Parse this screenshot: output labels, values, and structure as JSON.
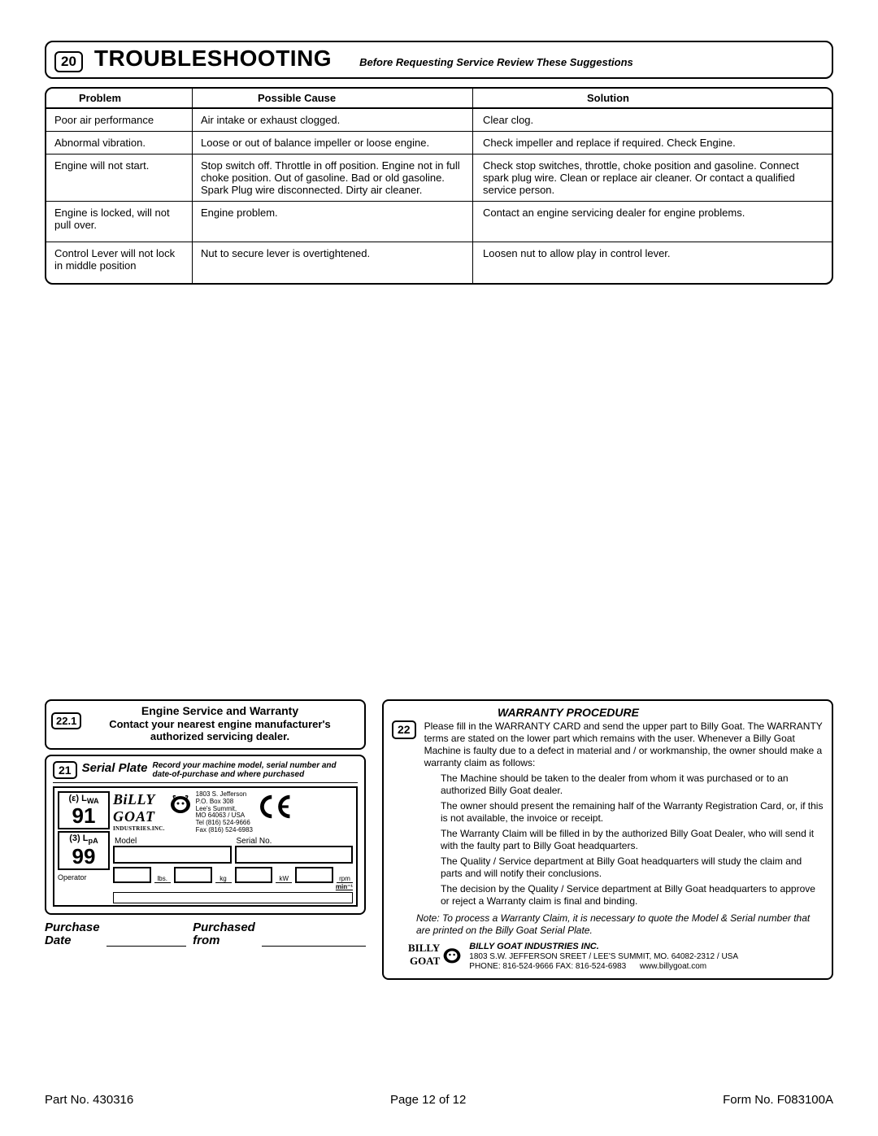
{
  "section20": {
    "num": "20",
    "title": "TROUBLESHOOTING",
    "subtitle": "Before Requesting Service Review These Suggestions"
  },
  "ts_table": {
    "columns": [
      "Problem",
      "Possible Cause",
      "Solution"
    ],
    "rows": [
      [
        "Poor air performance",
        "Air intake or exhaust clogged.",
        "Clear clog."
      ],
      [
        "Abnormal vibration.",
        "Loose or out of balance impeller or loose engine.",
        "Check impeller and replace if required. Check Engine."
      ],
      [
        "Engine will not start.",
        "Stop switch off. Throttle in off position. Engine not in full choke position.  Out of gasoline.  Bad or old gasoline.  Spark Plug wire disconnected.  Dirty air cleaner.",
        "Check stop switches, throttle, choke position and  gasoline. Connect spark plug wire. Clean or replace air cleaner. Or contact a qualified service person."
      ],
      [
        "Engine is locked, will not pull over.",
        "Engine problem.",
        "Contact an engine servicing dealer for engine problems."
      ],
      [
        "Control Lever will not lock in middle position",
        "Nut to secure lever is overtightened.",
        "Loosen nut to allow play in control lever."
      ]
    ]
  },
  "section22_1": {
    "num": "22.1",
    "line1": "Engine Service and Warranty",
    "line2": "Contact your nearest engine manufacturer's authorized servicing dealer."
  },
  "section21": {
    "num": "21",
    "title": "Serial Plate",
    "note": "Record your machine model, serial number and date-of-purchase and where purchased",
    "address": {
      "l1": "1803 S. Jefferson",
      "l2": "P.O. Box 308",
      "l3": "Lee's Summit,",
      "l4": "MO   64063 / USA",
      "l5": "Tel (816) 524-9666",
      "l6": "Fax (816) 524-6983"
    },
    "logo": {
      "l1": "BiLLY",
      "l2": "GOAT",
      "l3": "INDUSTRIES.INC."
    },
    "sound1_eps": "ε",
    "sound1_sym": "L",
    "sound1_sub": "WA",
    "sound1_val": "91",
    "sound2_sym": "L",
    "sound2_sub": "pA",
    "sound2_val": "99",
    "sound2_left": "3",
    "model_lbl": "Model",
    "serial_lbl": "Serial No.",
    "lbs": "lbs.",
    "kg": "kg",
    "kw": "kW",
    "rpm": "rpm",
    "min": "min⁻¹",
    "operator": "Operator"
  },
  "purchase": {
    "p1": "Purchase",
    "p2": "Date",
    "p3": "Purchased",
    "p4": "from"
  },
  "section22": {
    "num": "22",
    "title": "WARRANTY PROCEDURE",
    "intro": "Please fill in the WARRANTY CARD and send the upper part to Billy Goat. The WARRANTY terms are stated on the lower part which remains with the user. Whenever a Billy Goat Machine is faulty due to a defect in material and / or workmanship, the owner should make a warranty claim as follows:",
    "b1": "The Machine should be taken to the dealer from whom it was purchased or to an authorized Billy Goat dealer.",
    "b2": "The owner should present the remaining half of the Warranty Registration Card, or, if this is not available, the invoice or receipt.",
    "b3": "The Warranty Claim will be filled in by the authorized Billy Goat Dealer, who will send it with the faulty part to Billy Goat headquarters.",
    "b4": "The Quality / Service department at Billy Goat headquarters will study the claim and parts and will notify their conclusions.",
    "b5": "The decision by the Quality / Service department at Billy Goat headquarters to approve or reject a Warranty claim is final and binding.",
    "note": "Note:  To process a Warranty Claim, it is necessary to quote the Model & Serial number that are printed on the Billy Goat Serial Plate.",
    "company": {
      "name": "BILLY GOAT INDUSTRIES INC.",
      "addr": "1803 S.W. JEFFERSON  SREET / LEE'S SUMMIT, MO. 64082-2312  / USA",
      "phone": "PHONE: 816-524-9666 FAX: 816-524-6983",
      "web": "www.billygoat.com",
      "logo1": "BILLY",
      "logo2": "GOAT"
    }
  },
  "footer": {
    "part": "Part No. 430316",
    "page": "Page 12 of 12",
    "form": "Form No. F083100A"
  }
}
